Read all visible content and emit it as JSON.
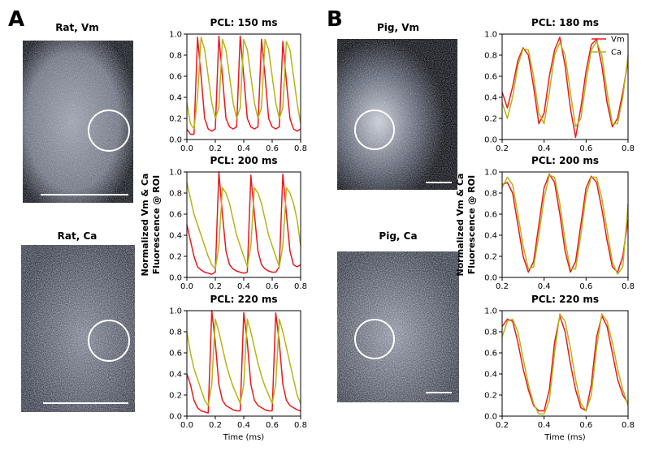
{
  "panels": [
    {
      "letter": "A",
      "images": [
        "Rat, Vm",
        "Rat, Ca"
      ]
    },
    {
      "letter": "B",
      "images": [
        "Pig, Vm",
        "Pig, Ca"
      ]
    }
  ],
  "chart_data": [
    {
      "type": "line",
      "title": "PCL: 150 ms",
      "x": [
        0,
        0.025,
        0.05,
        0.075,
        0.1,
        0.125,
        0.15,
        0.175,
        0.2,
        0.225,
        0.25,
        0.275,
        0.3,
        0.325,
        0.35,
        0.375,
        0.4,
        0.425,
        0.45,
        0.475,
        0.5,
        0.525,
        0.55,
        0.575,
        0.6,
        0.625,
        0.65,
        0.675,
        0.7,
        0.725,
        0.75,
        0.775,
        0.8
      ],
      "series": [
        {
          "name": "Vm",
          "color": "#e8191c",
          "values": [
            0.1,
            0.05,
            0.05,
            0.97,
            0.6,
            0.2,
            0.1,
            0.08,
            0.1,
            0.98,
            0.6,
            0.2,
            0.12,
            0.1,
            0.12,
            0.98,
            0.6,
            0.2,
            0.12,
            0.1,
            0.12,
            0.95,
            0.6,
            0.2,
            0.12,
            0.1,
            0.12,
            0.93,
            0.55,
            0.2,
            0.1,
            0.08,
            0.1
          ]
        },
        {
          "name": "Ca",
          "color": "#b5b416",
          "values": [
            0.35,
            0.15,
            0.1,
            0.4,
            0.97,
            0.85,
            0.6,
            0.35,
            0.2,
            0.3,
            0.95,
            0.85,
            0.6,
            0.35,
            0.2,
            0.3,
            0.95,
            0.85,
            0.6,
            0.35,
            0.2,
            0.3,
            0.95,
            0.85,
            0.6,
            0.35,
            0.2,
            0.3,
            0.93,
            0.85,
            0.6,
            0.35,
            0.15
          ]
        }
      ],
      "xlim": [
        0,
        0.8
      ],
      "ylim": [
        0,
        1
      ],
      "xticks": [
        {
          "value": 0,
          "label": "0.0"
        },
        {
          "value": 0.2,
          "label": "0.2"
        },
        {
          "value": 0.4,
          "label": "0.4"
        },
        {
          "value": 0.6,
          "label": "0.6"
        },
        {
          "value": 0.8,
          "label": "0.8"
        }
      ],
      "yticks": [
        {
          "value": 0,
          "label": "0.0"
        },
        {
          "value": 0.2,
          "label": "0.2"
        },
        {
          "value": 0.4,
          "label": "0.4"
        },
        {
          "value": 0.6,
          "label": "0.6"
        },
        {
          "value": 0.8,
          "label": "0.8"
        },
        {
          "value": 1,
          "label": "1.0"
        }
      ]
    },
    {
      "type": "line",
      "title": "PCL: 200 ms",
      "ylabel": [
        "Normalized Vm & Ca",
        "Fluorescence @ ROI"
      ],
      "x": [
        0,
        0.025,
        0.05,
        0.075,
        0.1,
        0.125,
        0.15,
        0.175,
        0.2,
        0.225,
        0.25,
        0.275,
        0.3,
        0.325,
        0.35,
        0.375,
        0.4,
        0.425,
        0.45,
        0.475,
        0.5,
        0.525,
        0.55,
        0.575,
        0.6,
        0.625,
        0.65,
        0.675,
        0.7,
        0.725,
        0.75,
        0.775,
        0.8
      ],
      "series": [
        {
          "name": "Vm",
          "color": "#e8191c",
          "values": [
            0.5,
            0.35,
            0.2,
            0.1,
            0.07,
            0.05,
            0.04,
            0.03,
            0.05,
            1.0,
            0.6,
            0.25,
            0.12,
            0.08,
            0.06,
            0.05,
            0.04,
            0.05,
            0.97,
            0.6,
            0.25,
            0.12,
            0.08,
            0.06,
            0.05,
            0.05,
            0.1,
            0.98,
            0.6,
            0.25,
            0.12,
            0.1,
            0.12
          ]
        },
        {
          "name": "Ca",
          "color": "#b5b416",
          "values": [
            0.9,
            0.75,
            0.6,
            0.5,
            0.4,
            0.3,
            0.2,
            0.12,
            0.08,
            0.3,
            0.85,
            0.8,
            0.7,
            0.55,
            0.4,
            0.3,
            0.2,
            0.1,
            0.3,
            0.85,
            0.8,
            0.7,
            0.55,
            0.4,
            0.3,
            0.2,
            0.1,
            0.3,
            0.85,
            0.8,
            0.7,
            0.55,
            0.3
          ]
        }
      ],
      "xlim": [
        0,
        0.8
      ],
      "ylim": [
        0,
        1
      ],
      "xticks": [
        {
          "value": 0,
          "label": "0.0"
        },
        {
          "value": 0.2,
          "label": "0.2"
        },
        {
          "value": 0.4,
          "label": "0.4"
        },
        {
          "value": 0.6,
          "label": "0.6"
        },
        {
          "value": 0.8,
          "label": "0.8"
        }
      ],
      "yticks": [
        {
          "value": 0,
          "label": "0.0"
        },
        {
          "value": 0.2,
          "label": "0.2"
        },
        {
          "value": 0.4,
          "label": "0.4"
        },
        {
          "value": 0.6,
          "label": "0.6"
        },
        {
          "value": 0.8,
          "label": "0.8"
        },
        {
          "value": 1,
          "label": "1.0"
        }
      ]
    },
    {
      "type": "line",
      "title": "PCL: 220 ms",
      "xlabel": "Time (ms)",
      "x": [
        0,
        0.025,
        0.05,
        0.075,
        0.1,
        0.125,
        0.15,
        0.175,
        0.2,
        0.225,
        0.25,
        0.275,
        0.3,
        0.325,
        0.35,
        0.375,
        0.4,
        0.425,
        0.45,
        0.475,
        0.5,
        0.525,
        0.55,
        0.575,
        0.6,
        0.625,
        0.65,
        0.675,
        0.7,
        0.725,
        0.75,
        0.775,
        0.8
      ],
      "series": [
        {
          "name": "Vm",
          "color": "#e8191c",
          "values": [
            0.4,
            0.3,
            0.15,
            0.08,
            0.05,
            0.04,
            0.03,
            1.0,
            0.7,
            0.3,
            0.15,
            0.1,
            0.08,
            0.06,
            0.05,
            0.05,
            0.98,
            0.7,
            0.3,
            0.15,
            0.1,
            0.08,
            0.06,
            0.05,
            0.05,
            0.98,
            0.7,
            0.3,
            0.15,
            0.1,
            0.08,
            0.06,
            0.05
          ]
        },
        {
          "name": "Ca",
          "color": "#b5b416",
          "values": [
            0.8,
            0.6,
            0.45,
            0.35,
            0.25,
            0.15,
            0.1,
            0.3,
            0.92,
            0.8,
            0.65,
            0.5,
            0.38,
            0.28,
            0.2,
            0.12,
            0.3,
            0.92,
            0.8,
            0.65,
            0.5,
            0.38,
            0.28,
            0.2,
            0.12,
            0.3,
            0.92,
            0.8,
            0.65,
            0.5,
            0.35,
            0.2,
            0.12
          ]
        }
      ],
      "xlim": [
        0,
        0.8
      ],
      "ylim": [
        0,
        1
      ],
      "xticks": [
        {
          "value": 0,
          "label": "0.0"
        },
        {
          "value": 0.2,
          "label": "0.2"
        },
        {
          "value": 0.4,
          "label": "0.4"
        },
        {
          "value": 0.6,
          "label": "0.6"
        },
        {
          "value": 0.8,
          "label": "0.8"
        }
      ],
      "yticks": [
        {
          "value": 0,
          "label": "0.0"
        },
        {
          "value": 0.2,
          "label": "0.2"
        },
        {
          "value": 0.4,
          "label": "0.4"
        },
        {
          "value": 0.6,
          "label": "0.6"
        },
        {
          "value": 0.8,
          "label": "0.8"
        },
        {
          "value": 1,
          "label": "1.0"
        }
      ]
    },
    {
      "type": "line",
      "title": "PCL: 180 ms",
      "legend": "upper right",
      "x": [
        0.2,
        0.225,
        0.25,
        0.275,
        0.3,
        0.325,
        0.35,
        0.375,
        0.4,
        0.425,
        0.45,
        0.475,
        0.5,
        0.525,
        0.55,
        0.575,
        0.6,
        0.625,
        0.65,
        0.675,
        0.7,
        0.725,
        0.75,
        0.775,
        0.8
      ],
      "series": [
        {
          "name": "Vm",
          "color": "#e8191c",
          "values": [
            0.45,
            0.3,
            0.5,
            0.75,
            0.87,
            0.8,
            0.5,
            0.15,
            0.25,
            0.6,
            0.85,
            0.97,
            0.7,
            0.3,
            0.02,
            0.3,
            0.65,
            0.9,
            0.95,
            0.7,
            0.35,
            0.12,
            0.2,
            0.45,
            0.75
          ]
        },
        {
          "name": "Ca",
          "color": "#b5b416",
          "values": [
            0.35,
            0.2,
            0.4,
            0.7,
            0.86,
            0.85,
            0.6,
            0.25,
            0.15,
            0.45,
            0.8,
            0.92,
            0.8,
            0.45,
            0.12,
            0.2,
            0.55,
            0.85,
            0.93,
            0.8,
            0.45,
            0.15,
            0.15,
            0.4,
            0.8
          ]
        }
      ],
      "xlim": [
        0.2,
        0.8
      ],
      "ylim": [
        0,
        1
      ],
      "xticks": [
        {
          "value": 0.2,
          "label": "0.2"
        },
        {
          "value": 0.4,
          "label": "0.4"
        },
        {
          "value": 0.6,
          "label": "0.6"
        },
        {
          "value": 0.8,
          "label": "0.8"
        }
      ],
      "yticks": [
        {
          "value": 0,
          "label": "0.0"
        },
        {
          "value": 0.2,
          "label": "0.2"
        },
        {
          "value": 0.4,
          "label": "0.4"
        },
        {
          "value": 0.6,
          "label": "0.6"
        },
        {
          "value": 0.8,
          "label": "0.8"
        },
        {
          "value": 1,
          "label": "1.0"
        }
      ]
    },
    {
      "type": "line",
      "title": "PCL: 200 ms",
      "ylabel": [
        "Normalized Vm & Ca",
        "Fluorescence @ ROI"
      ],
      "x": [
        0.2,
        0.225,
        0.25,
        0.275,
        0.3,
        0.325,
        0.35,
        0.375,
        0.4,
        0.425,
        0.45,
        0.475,
        0.5,
        0.525,
        0.55,
        0.575,
        0.6,
        0.625,
        0.65,
        0.675,
        0.7,
        0.725,
        0.75,
        0.775,
        0.8
      ],
      "series": [
        {
          "name": "Vm",
          "color": "#e8191c",
          "values": [
            0.88,
            0.9,
            0.8,
            0.5,
            0.2,
            0.05,
            0.15,
            0.5,
            0.85,
            0.98,
            0.9,
            0.6,
            0.25,
            0.05,
            0.15,
            0.5,
            0.85,
            0.96,
            0.9,
            0.65,
            0.35,
            0.1,
            0.05,
            0.2,
            0.55
          ]
        },
        {
          "name": "Ca",
          "color": "#b5b416",
          "values": [
            0.85,
            0.95,
            0.88,
            0.6,
            0.3,
            0.08,
            0.1,
            0.4,
            0.75,
            0.97,
            0.95,
            0.7,
            0.35,
            0.08,
            0.08,
            0.4,
            0.78,
            0.95,
            0.95,
            0.75,
            0.45,
            0.15,
            0.03,
            0.1,
            0.7
          ]
        }
      ],
      "xlim": [
        0.2,
        0.8
      ],
      "ylim": [
        0,
        1
      ],
      "xticks": [
        {
          "value": 0.2,
          "label": "0.2"
        },
        {
          "value": 0.4,
          "label": "0.4"
        },
        {
          "value": 0.6,
          "label": "0.6"
        },
        {
          "value": 0.8,
          "label": "0.8"
        }
      ],
      "yticks": [
        {
          "value": 0,
          "label": "0.0"
        },
        {
          "value": 0.2,
          "label": "0.2"
        },
        {
          "value": 0.4,
          "label": "0.4"
        },
        {
          "value": 0.6,
          "label": "0.6"
        },
        {
          "value": 0.8,
          "label": "0.8"
        },
        {
          "value": 1,
          "label": "1.0"
        }
      ]
    },
    {
      "type": "line",
      "title": "PCL: 220 ms",
      "xlabel": "Time (ms)",
      "x": [
        0.2,
        0.225,
        0.25,
        0.275,
        0.3,
        0.325,
        0.35,
        0.375,
        0.4,
        0.425,
        0.45,
        0.475,
        0.5,
        0.525,
        0.55,
        0.575,
        0.6,
        0.625,
        0.65,
        0.675,
        0.7,
        0.725,
        0.75,
        0.775,
        0.8
      ],
      "series": [
        {
          "name": "Vm",
          "color": "#e8191c",
          "values": [
            0.85,
            0.92,
            0.9,
            0.7,
            0.45,
            0.25,
            0.1,
            0.05,
            0.05,
            0.25,
            0.7,
            0.95,
            0.8,
            0.5,
            0.25,
            0.08,
            0.05,
            0.3,
            0.75,
            0.95,
            0.85,
            0.6,
            0.35,
            0.2,
            0.12
          ]
        },
        {
          "name": "Ca",
          "color": "#b5b416",
          "values": [
            0.75,
            0.9,
            0.92,
            0.8,
            0.55,
            0.3,
            0.12,
            0.02,
            0.02,
            0.15,
            0.6,
            0.97,
            0.9,
            0.65,
            0.35,
            0.12,
            0.05,
            0.2,
            0.65,
            0.97,
            0.9,
            0.7,
            0.45,
            0.25,
            0.1
          ]
        }
      ],
      "xlim": [
        0.2,
        0.8
      ],
      "ylim": [
        0,
        1
      ],
      "xticks": [
        {
          "value": 0.2,
          "label": "0.2"
        },
        {
          "value": 0.4,
          "label": "0.4"
        },
        {
          "value": 0.6,
          "label": "0.6"
        },
        {
          "value": 0.8,
          "label": "0.8"
        }
      ],
      "yticks": [
        {
          "value": 0,
          "label": "0.0"
        },
        {
          "value": 0.2,
          "label": "0.2"
        },
        {
          "value": 0.4,
          "label": "0.4"
        },
        {
          "value": 0.6,
          "label": "0.6"
        },
        {
          "value": 0.8,
          "label": "0.8"
        },
        {
          "value": 1,
          "label": "1.0"
        }
      ]
    }
  ]
}
